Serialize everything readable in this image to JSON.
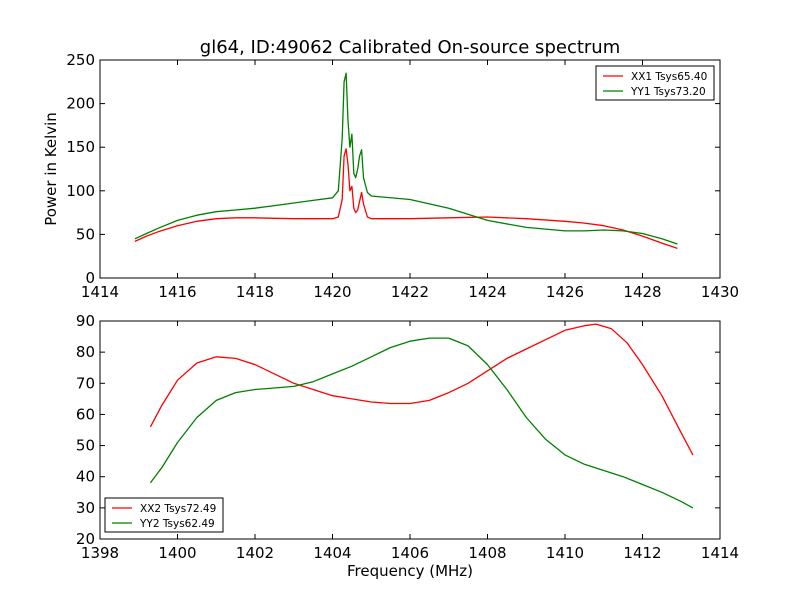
{
  "chart_data": [
    {
      "type": "line",
      "title": "gl64, ID:49062 Calibrated On-source spectrum",
      "xlabel": "",
      "ylabel": "Power in Kelvin",
      "xlim": [
        1414,
        1430
      ],
      "ylim": [
        0,
        250
      ],
      "xticks": [
        1414,
        1416,
        1418,
        1420,
        1422,
        1424,
        1426,
        1428,
        1430
      ],
      "yticks": [
        0,
        50,
        100,
        150,
        200,
        250
      ],
      "grid": false,
      "legend": "top-right",
      "series": [
        {
          "name": "XX1 Tsys65.40",
          "color": "#ff0000",
          "x": [
            1414.9,
            1415.2,
            1415.5,
            1416.0,
            1416.5,
            1417.0,
            1417.5,
            1418.0,
            1418.5,
            1419.0,
            1419.5,
            1420.0,
            1420.15,
            1420.25,
            1420.3,
            1420.35,
            1420.4,
            1420.45,
            1420.5,
            1420.55,
            1420.6,
            1420.65,
            1420.7,
            1420.75,
            1420.8,
            1420.9,
            1421.0,
            1422.0,
            1423.0,
            1424.0,
            1425.0,
            1426.0,
            1426.5,
            1427.0,
            1427.5,
            1428.0,
            1428.5,
            1428.9
          ],
          "y": [
            42,
            48,
            53,
            60,
            65,
            68,
            69,
            69,
            68.5,
            68,
            68,
            68,
            70,
            90,
            140,
            148,
            130,
            100,
            105,
            80,
            75,
            78,
            88,
            98,
            85,
            70,
            68,
            68,
            69,
            70,
            68,
            65,
            63,
            60,
            55,
            48,
            40,
            34
          ]
        },
        {
          "name": "YY1 Tsys73.20",
          "color": "#008000",
          "x": [
            1414.9,
            1415.2,
            1415.5,
            1416.0,
            1416.5,
            1417.0,
            1417.5,
            1418.0,
            1418.5,
            1419.0,
            1419.5,
            1420.0,
            1420.15,
            1420.25,
            1420.3,
            1420.35,
            1420.4,
            1420.45,
            1420.5,
            1420.55,
            1420.6,
            1420.65,
            1420.7,
            1420.75,
            1420.8,
            1420.9,
            1421.0,
            1422.0,
            1423.0,
            1424.0,
            1425.0,
            1426.0,
            1426.5,
            1427.0,
            1427.5,
            1428.0,
            1428.5,
            1428.9
          ],
          "y": [
            45,
            51,
            57,
            66,
            72,
            76,
            78,
            80,
            83,
            86,
            89,
            92,
            100,
            160,
            225,
            235,
            180,
            150,
            165,
            120,
            115,
            125,
            140,
            147,
            115,
            98,
            94,
            90,
            80,
            66,
            58,
            54,
            54,
            55,
            54,
            51,
            45,
            39
          ]
        }
      ]
    },
    {
      "type": "line",
      "title": "",
      "xlabel": "Frequency (MHz)",
      "ylabel": "",
      "xlim": [
        1398,
        1414
      ],
      "ylim": [
        20,
        90
      ],
      "xticks": [
        1398,
        1400,
        1402,
        1404,
        1406,
        1408,
        1410,
        1412,
        1414
      ],
      "yticks": [
        20,
        30,
        40,
        50,
        60,
        70,
        80,
        90
      ],
      "grid": false,
      "legend": "bottom-left",
      "series": [
        {
          "name": "XX2 Tsys72.49",
          "color": "#ff0000",
          "x": [
            1399.3,
            1399.6,
            1400.0,
            1400.5,
            1401.0,
            1401.5,
            1402.0,
            1402.5,
            1403.0,
            1403.5,
            1404.0,
            1404.5,
            1405.0,
            1405.5,
            1406.0,
            1406.5,
            1407.0,
            1407.5,
            1408.0,
            1408.5,
            1409.0,
            1409.5,
            1410.0,
            1410.5,
            1410.8,
            1411.2,
            1411.6,
            1412.0,
            1412.5,
            1413.0,
            1413.3
          ],
          "y": [
            56,
            63,
            71,
            76.5,
            78.5,
            78,
            76,
            73,
            70,
            68,
            66,
            65,
            64,
            63.5,
            63.5,
            64.5,
            67,
            70,
            74,
            78,
            81,
            84,
            87,
            88.5,
            89,
            87.5,
            83,
            76,
            66,
            54,
            47
          ]
        },
        {
          "name": "YY2 Tsys62.49",
          "color": "#008000",
          "x": [
            1399.3,
            1399.6,
            1400.0,
            1400.5,
            1401.0,
            1401.5,
            1402.0,
            1402.5,
            1403.0,
            1403.5,
            1404.0,
            1404.5,
            1405.0,
            1405.5,
            1406.0,
            1406.5,
            1407.0,
            1407.5,
            1408.0,
            1408.5,
            1409.0,
            1409.5,
            1410.0,
            1410.5,
            1411.0,
            1411.5,
            1412.0,
            1412.5,
            1413.0,
            1413.3
          ],
          "y": [
            38,
            43,
            51,
            59,
            64.5,
            67,
            68,
            68.5,
            69,
            70.5,
            73,
            75.5,
            78.5,
            81.5,
            83.5,
            84.5,
            84.5,
            82,
            76,
            68,
            59,
            52,
            47,
            44,
            42,
            40,
            37.5,
            35,
            32,
            30
          ]
        }
      ]
    }
  ]
}
